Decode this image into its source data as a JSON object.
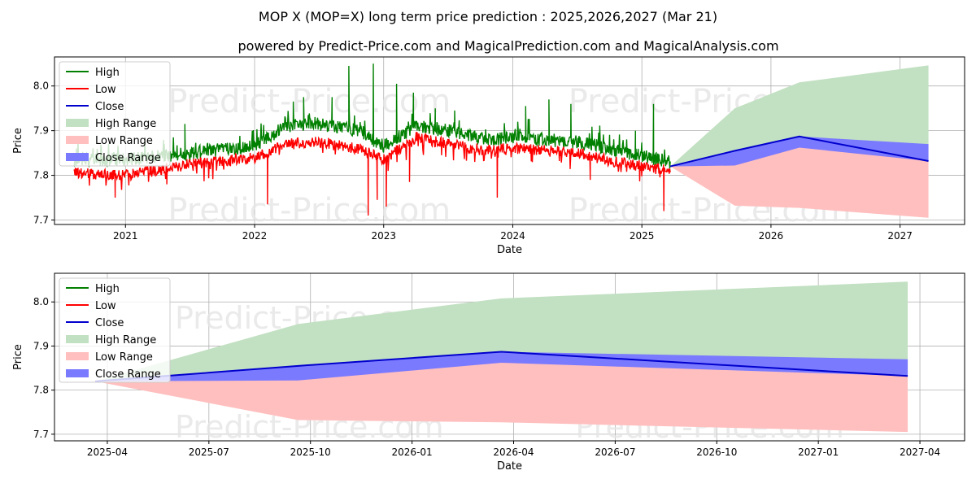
{
  "chart_data": [
    {
      "type": "line",
      "title": "MOP X (MOP=X) long term price prediction : 2025,2026,2027 (Mar 21)",
      "subtitle": "powered by Predict-Price.com and MagicalPrediction.com and MagicalAnalysis.com",
      "xlabel": "Date",
      "ylabel": "Price",
      "xlim": [
        2020.45,
        2027.5
      ],
      "ylim": [
        7.69,
        8.065
      ],
      "x_ticks": [
        {
          "v": 2021.0,
          "label": "2021"
        },
        {
          "v": 2022.0,
          "label": "2022"
        },
        {
          "v": 2023.0,
          "label": "2023"
        },
        {
          "v": 2024.0,
          "label": "2024"
        },
        {
          "v": 2025.0,
          "label": "2025"
        },
        {
          "v": 2026.0,
          "label": "2026"
        },
        {
          "v": 2027.0,
          "label": "2027"
        }
      ],
      "y_ticks": [
        {
          "v": 7.7,
          "label": "7.7"
        },
        {
          "v": 7.8,
          "label": "7.8"
        },
        {
          "v": 7.9,
          "label": "7.9"
        },
        {
          "v": 8.0,
          "label": "8.0"
        }
      ],
      "grid": true,
      "legend_position": "top-left",
      "legend": [
        "High",
        "Low",
        "Close",
        "High Range",
        "Low Range",
        "Close Range"
      ],
      "watermark": "Predict-Price.com",
      "history_range": [
        2020.6,
        2025.22
      ],
      "history_anchors": [
        {
          "x": 2020.6,
          "low": 7.805,
          "high": 7.835
        },
        {
          "x": 2021.0,
          "low": 7.8,
          "high": 7.835
        },
        {
          "x": 2021.5,
          "low": 7.825,
          "high": 7.85
        },
        {
          "x": 2022.0,
          "low": 7.84,
          "high": 7.865
        },
        {
          "x": 2022.25,
          "low": 7.87,
          "high": 7.91
        },
        {
          "x": 2022.5,
          "low": 7.875,
          "high": 7.915
        },
        {
          "x": 2022.8,
          "low": 7.86,
          "high": 7.9
        },
        {
          "x": 2023.0,
          "low": 7.835,
          "high": 7.865
        },
        {
          "x": 2023.25,
          "low": 7.885,
          "high": 7.91
        },
        {
          "x": 2023.5,
          "low": 7.87,
          "high": 7.9
        },
        {
          "x": 2023.8,
          "low": 7.855,
          "high": 7.88
        },
        {
          "x": 2024.0,
          "low": 7.86,
          "high": 7.885
        },
        {
          "x": 2024.5,
          "low": 7.85,
          "high": 7.875
        },
        {
          "x": 2024.8,
          "low": 7.83,
          "high": 7.855
        },
        {
          "x": 2025.22,
          "low": 7.81,
          "high": 7.83
        }
      ],
      "high_spikes": [
        {
          "x": 2020.62,
          "v": 7.86
        },
        {
          "x": 2021.3,
          "v": 7.87
        },
        {
          "x": 2021.46,
          "v": 7.915
        },
        {
          "x": 2022.15,
          "v": 7.9
        },
        {
          "x": 2022.3,
          "v": 7.965
        },
        {
          "x": 2022.38,
          "v": 7.975
        },
        {
          "x": 2022.6,
          "v": 7.975
        },
        {
          "x": 2022.73,
          "v": 8.045
        },
        {
          "x": 2022.92,
          "v": 8.05
        },
        {
          "x": 2023.1,
          "v": 8.005
        },
        {
          "x": 2023.23,
          "v": 7.985
        },
        {
          "x": 2023.4,
          "v": 7.95
        },
        {
          "x": 2023.55,
          "v": 7.945
        },
        {
          "x": 2024.1,
          "v": 7.955
        },
        {
          "x": 2024.28,
          "v": 7.97
        },
        {
          "x": 2024.45,
          "v": 7.96
        },
        {
          "x": 2024.95,
          "v": 7.9
        },
        {
          "x": 2025.09,
          "v": 7.96
        }
      ],
      "low_spikes": [
        {
          "x": 2020.92,
          "v": 7.75
        },
        {
          "x": 2021.32,
          "v": 7.78
        },
        {
          "x": 2022.1,
          "v": 7.735
        },
        {
          "x": 2022.88,
          "v": 7.71
        },
        {
          "x": 2022.95,
          "v": 7.745
        },
        {
          "x": 2023.02,
          "v": 7.73
        },
        {
          "x": 2023.2,
          "v": 7.785
        },
        {
          "x": 2023.88,
          "v": 7.75
        },
        {
          "x": 2024.6,
          "v": 7.79
        },
        {
          "x": 2025.17,
          "v": 7.72
        }
      ],
      "forecast": {
        "x": [
          2025.22,
          2025.72,
          2026.22,
          2027.22
        ],
        "close": [
          7.82,
          7.855,
          7.887,
          7.832
        ],
        "close_upper": [
          7.82,
          7.855,
          7.887,
          7.87
        ],
        "close_lower": [
          7.82,
          7.822,
          7.862,
          7.832
        ],
        "high_range": [
          7.82,
          7.95,
          8.008,
          8.046
        ],
        "low_range": [
          7.82,
          7.732,
          7.727,
          7.705
        ]
      }
    },
    {
      "type": "line",
      "xlabel": "Date",
      "ylabel": "Price",
      "xlim": [
        2025.12,
        2027.36
      ],
      "ylim": [
        7.685,
        8.065
      ],
      "x_ticks": [
        {
          "v": 2025.25,
          "label": "2025-04"
        },
        {
          "v": 2025.5,
          "label": "2025-07"
        },
        {
          "v": 2025.75,
          "label": "2025-10"
        },
        {
          "v": 2026.0,
          "label": "2026-01"
        },
        {
          "v": 2026.25,
          "label": "2026-04"
        },
        {
          "v": 2026.5,
          "label": "2026-07"
        },
        {
          "v": 2026.75,
          "label": "2026-10"
        },
        {
          "v": 2027.0,
          "label": "2027-01"
        },
        {
          "v": 2027.25,
          "label": "2027-04"
        }
      ],
      "y_ticks": [
        {
          "v": 7.7,
          "label": "7.7"
        },
        {
          "v": 7.8,
          "label": "7.8"
        },
        {
          "v": 7.9,
          "label": "7.9"
        },
        {
          "v": 8.0,
          "label": "8.0"
        }
      ],
      "grid": true,
      "legend_position": "top-left",
      "legend": [
        "High",
        "Low",
        "Close",
        "High Range",
        "Low Range",
        "Close Range"
      ],
      "watermark": "Predict-Price.com",
      "forecast": {
        "x": [
          2025.22,
          2025.72,
          2026.22,
          2027.22
        ],
        "close": [
          7.82,
          7.855,
          7.887,
          7.832
        ],
        "close_upper": [
          7.82,
          7.855,
          7.887,
          7.87
        ],
        "close_lower": [
          7.82,
          7.822,
          7.862,
          7.832
        ],
        "high_range": [
          7.82,
          7.95,
          8.008,
          8.046
        ],
        "low_range": [
          7.82,
          7.732,
          7.727,
          7.705
        ]
      }
    }
  ],
  "colors": {
    "high": "#008000",
    "low": "#ff0000",
    "close": "#0000cd",
    "high_range": "#c2e0c2",
    "low_range": "#ffbfbf",
    "close_range": "#7a7aff"
  }
}
